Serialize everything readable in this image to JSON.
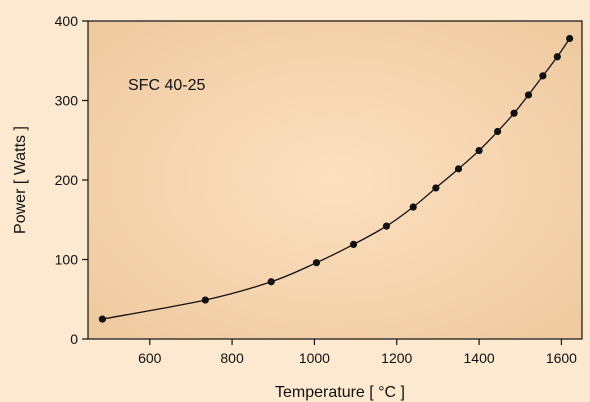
{
  "chart_data": {
    "type": "line",
    "annotation": "SFC 40-25",
    "xlabel": "Temperature [ °C ]",
    "ylabel": "Power [ Watts ]",
    "xlim": [
      450,
      1650
    ],
    "ylim": [
      0,
      400
    ],
    "x_ticks": [
      600,
      800,
      1000,
      1200,
      1400,
      1600
    ],
    "y_ticks": [
      0,
      100,
      200,
      300,
      400
    ],
    "grid": false,
    "colors": {
      "background": "#fce9d0",
      "plot_center": "#fde0c0",
      "plot_edge": "#eec99f",
      "line": "#111111",
      "axis": "#111111"
    },
    "series": [
      {
        "x": [
          485,
          735,
          895,
          1005,
          1095,
          1175,
          1240,
          1295,
          1350,
          1400,
          1445,
          1485,
          1520,
          1555,
          1590,
          1620
        ],
        "y": [
          25,
          49,
          72,
          96,
          119,
          142,
          166,
          190,
          214,
          237,
          261,
          284,
          307,
          331,
          355,
          378
        ]
      }
    ]
  }
}
